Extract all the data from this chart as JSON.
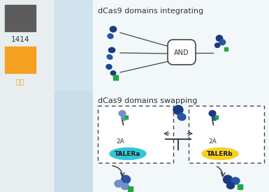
{
  "bg_color": "#edf2f5",
  "left_bg": "#e4eaee",
  "center_col_color": "#c5dce8",
  "main_bg": "#f0f5f8",
  "gray_box": "#5c5c5c",
  "orange_box": "#f5a020",
  "share_text": "分享",
  "count_text": "1414",
  "title1": "dCas9 domains integrating",
  "title2": "dCas9 domains swapping",
  "and_label": "AND",
  "talera_label": "TALERa",
  "talerb_label": "TALERb",
  "label_2a": "2A",
  "dark_blue": "#1a3a80",
  "mid_blue": "#2a55a0",
  "light_blue_p": "#7090c8",
  "green": "#20a840",
  "cyan_bg": "#30c8d8",
  "yellow_bg": "#f8d020",
  "text_color": "#333333",
  "share_color": "#f5a020",
  "line_color": "#444444",
  "white": "#ffffff"
}
